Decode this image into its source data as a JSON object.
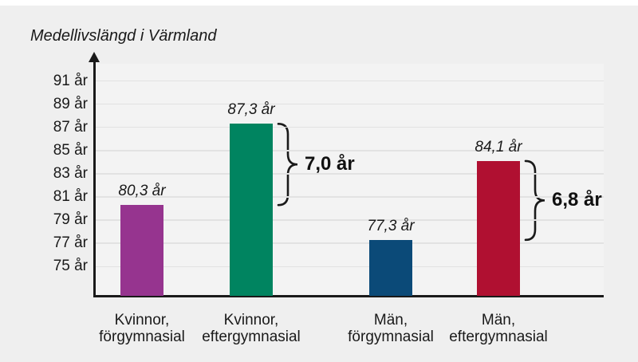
{
  "chart_data": {
    "type": "bar",
    "title": "Medellivslängd i Värmland",
    "xlabel": "",
    "ylabel": "",
    "grid": true,
    "legend": false,
    "categories": [
      "Kvinnor, förgymnasial",
      "Kvinnor, eftergymnasial",
      "Män, förgymnasial",
      "Män, eftergymnasial"
    ],
    "category_lines": [
      [
        "Kvinnor,",
        "förgymnasial"
      ],
      [
        "Kvinnor,",
        "eftergymnasial"
      ],
      [
        "Män,",
        "förgymnasial"
      ],
      [
        "Män,",
        "eftergymnasial"
      ]
    ],
    "values": [
      80.3,
      87.3,
      77.3,
      84.1
    ],
    "value_labels": [
      "80,3 år",
      "87,3 år",
      "77,3 år",
      "84,1 år"
    ],
    "bar_colors": [
      "#96348F",
      "#008460",
      "#0B4A78",
      "#B01031"
    ],
    "unit": "år",
    "ytick_values": [
      91,
      89,
      87,
      85,
      83,
      81,
      79,
      77,
      75
    ],
    "ytick_labels": [
      "91 år",
      "89 år",
      "87 år",
      "85 år",
      "83 år",
      "81 år",
      "79 år",
      "77 år",
      "75 år"
    ],
    "ylim": [
      72.5,
      93.5
    ],
    "annotations": [
      {
        "label": "7,0 år",
        "bar_index": 1,
        "from_value": 87.3,
        "to_value": 80.3
      },
      {
        "label": "6,8 år",
        "bar_index": 3,
        "from_value": 84.1,
        "to_value": 77.3
      }
    ]
  },
  "colors": {
    "background": "#EFEFEF",
    "plot_background": "#F3F3F3",
    "gridline": "#E2E2E2",
    "axis": "#1A1A1A",
    "text": "#1A1A1A"
  }
}
